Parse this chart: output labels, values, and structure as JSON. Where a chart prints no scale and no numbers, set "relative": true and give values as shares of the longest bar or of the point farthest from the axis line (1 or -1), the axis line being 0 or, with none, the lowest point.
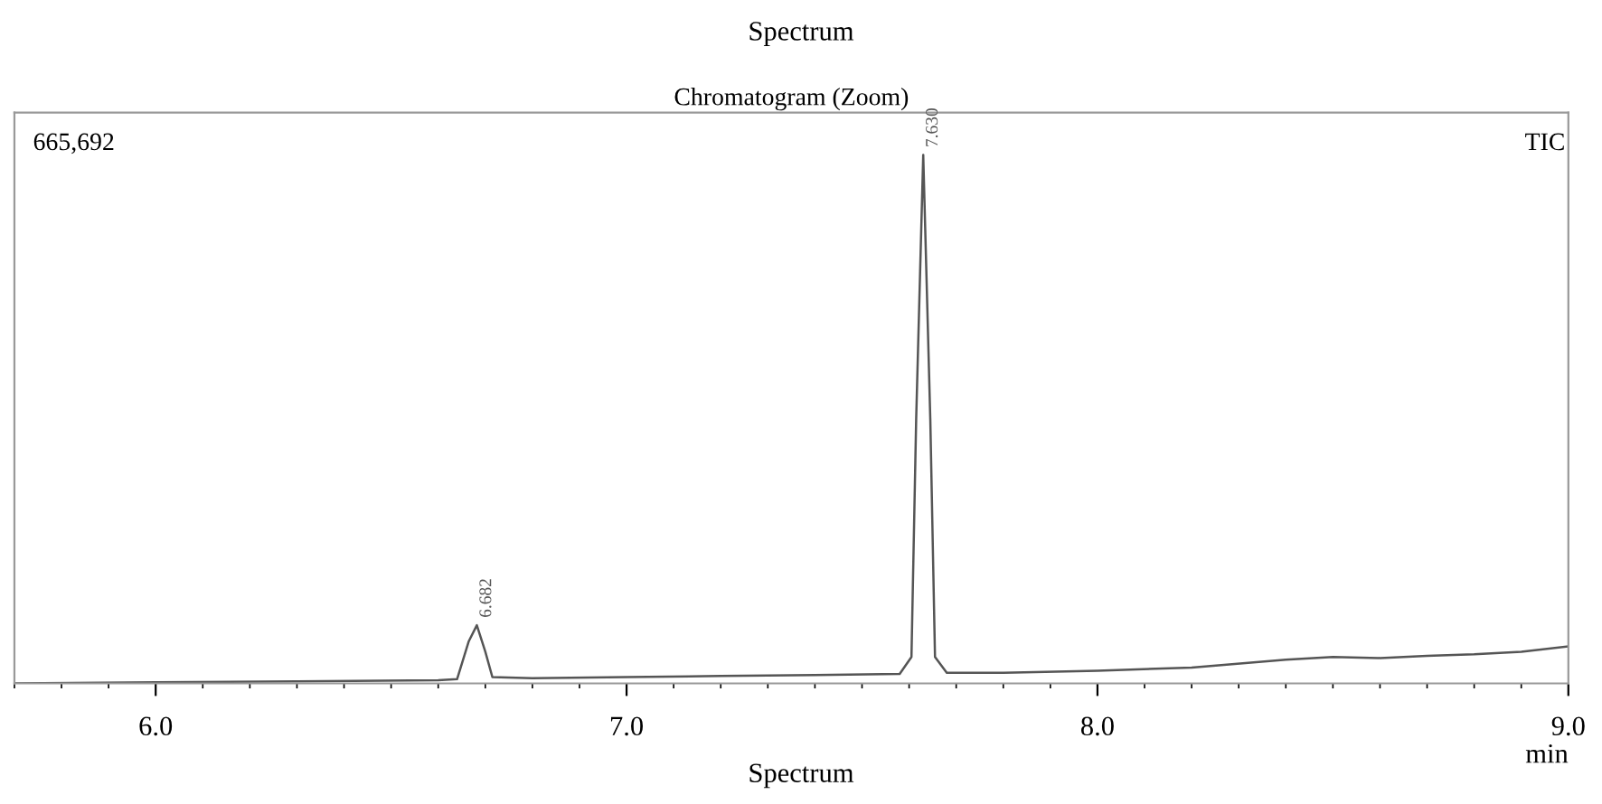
{
  "chart_data": {
    "type": "line",
    "title": "Spectrum",
    "subtitle": "Chromatogram (Zoom)",
    "xlabel": "min",
    "relative": true,
    "x": [
      5.7,
      6.0,
      6.3,
      6.6,
      6.64,
      6.665,
      6.682,
      6.7,
      6.715,
      6.8,
      7.0,
      7.2,
      7.4,
      7.58,
      7.605,
      7.615,
      7.63,
      7.645,
      7.655,
      7.68,
      7.8,
      8.0,
      8.2,
      8.4,
      8.5,
      8.6,
      8.7,
      8.8,
      8.9,
      9.0
    ],
    "series": [
      {
        "color": "#555555",
        "values": [
          0.0,
          0.002,
          0.004,
          0.006,
          0.008,
          0.08,
          0.11,
          0.06,
          0.012,
          0.01,
          0.012,
          0.014,
          0.016,
          0.018,
          0.05,
          0.5,
          1.0,
          0.5,
          0.05,
          0.02,
          0.02,
          0.024,
          0.03,
          0.045,
          0.05,
          0.048,
          0.052,
          0.055,
          0.06,
          0.07
        ]
      }
    ],
    "xlim": [
      5.7,
      9.0
    ],
    "xticks": [
      {
        "value": 6,
        "label": "6.0"
      },
      {
        "value": 7,
        "label": "7.0"
      },
      {
        "value": 8,
        "label": "8.0"
      },
      {
        "value": 9,
        "label": "9.0"
      }
    ],
    "annotations": [
      "665,692",
      "TIC",
      {
        "text": "6.682",
        "x": 6.682,
        "y": 0.11
      },
      {
        "text": "7.630",
        "x": 7.63,
        "y": 1.0
      },
      "Spectrum"
    ],
    "grid": false,
    "legend": false,
    "marker": "none",
    "line_style": "solid"
  }
}
